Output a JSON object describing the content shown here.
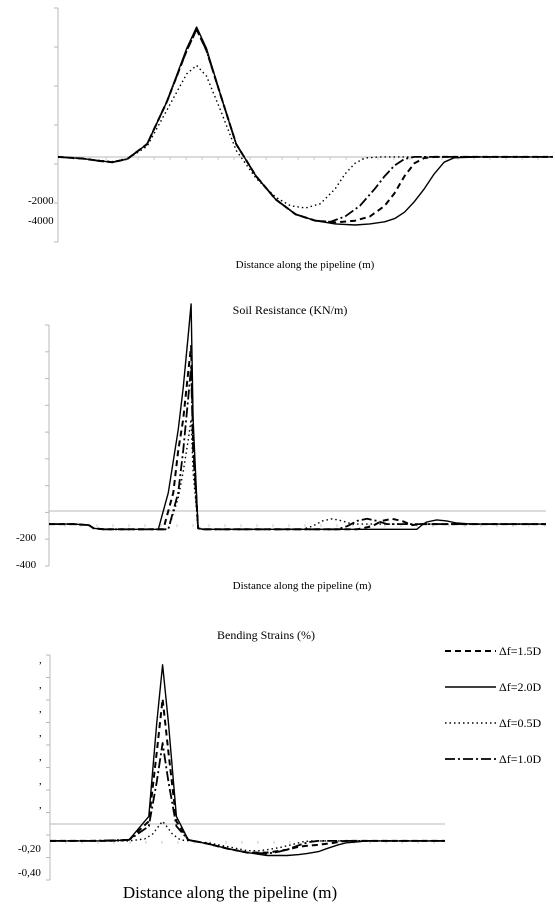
{
  "chart_data": [
    {
      "type": "line",
      "title": "",
      "xlabel": "Distance along the pipeline (m)",
      "ylabel": "",
      "y_ticks": [
        "-2000",
        "-4000"
      ],
      "ylim": [
        -4000,
        7000
      ],
      "xlim": [
        0,
        100
      ],
      "grid": false,
      "series": [
        {
          "name": "Δf=1.5D",
          "dash": "6,4",
          "width": 2,
          "x": [
            0,
            5,
            8,
            11,
            14,
            18,
            22,
            26,
            28,
            30,
            33,
            36,
            40,
            44,
            48,
            52,
            56,
            60,
            63,
            66,
            68,
            70,
            72,
            74,
            76,
            78,
            80,
            85,
            90,
            100
          ],
          "y": [
            0,
            -80,
            -180,
            -250,
            -100,
            600,
            2600,
            5000,
            6000,
            5000,
            2800,
            600,
            -900,
            -2000,
            -2700,
            -3000,
            -3080,
            -3000,
            -2800,
            -2300,
            -1700,
            -900,
            -300,
            -50,
            0,
            0,
            0,
            0,
            0,
            0
          ]
        },
        {
          "name": "Δf=2.0D",
          "dash": "",
          "width": 1.4,
          "x": [
            0,
            5,
            8,
            11,
            14,
            18,
            22,
            26,
            28,
            30,
            33,
            36,
            40,
            44,
            48,
            52,
            56,
            60,
            63,
            66,
            68,
            70,
            72,
            74,
            76,
            78,
            80,
            85,
            90,
            100
          ],
          "y": [
            0,
            -80,
            -180,
            -250,
            -100,
            600,
            2600,
            5100,
            6100,
            5100,
            2800,
            600,
            -900,
            -2000,
            -2700,
            -3000,
            -3150,
            -3200,
            -3150,
            -3050,
            -2900,
            -2600,
            -2100,
            -1500,
            -800,
            -250,
            -40,
            0,
            0,
            0
          ]
        },
        {
          "name": "Δf=0.5D",
          "dash": "1.5,3",
          "width": 1.4,
          "x": [
            0,
            5,
            8,
            11,
            14,
            18,
            22,
            26,
            28,
            30,
            33,
            36,
            40,
            44,
            47,
            50,
            53,
            56,
            58,
            60,
            62,
            65,
            70,
            80,
            90,
            100
          ],
          "y": [
            0,
            -80,
            -160,
            -220,
            -100,
            500,
            2200,
            3900,
            4300,
            3800,
            2100,
            300,
            -1000,
            -1900,
            -2300,
            -2400,
            -2200,
            -1500,
            -800,
            -300,
            -50,
            0,
            0,
            0,
            0,
            0
          ]
        },
        {
          "name": "Δf=1.0D",
          "dash": "10,3,2,3",
          "width": 1.8,
          "x": [
            0,
            5,
            8,
            11,
            14,
            18,
            22,
            26,
            28,
            30,
            33,
            36,
            40,
            44,
            48,
            52,
            55,
            58,
            61,
            64,
            66,
            68,
            70,
            72,
            75,
            80,
            90,
            100
          ],
          "y": [
            0,
            -80,
            -180,
            -250,
            -100,
            600,
            2600,
            5000,
            6000,
            5000,
            2800,
            600,
            -900,
            -2000,
            -2700,
            -3000,
            -3050,
            -2800,
            -2300,
            -1500,
            -900,
            -400,
            -100,
            0,
            0,
            0,
            0,
            0
          ]
        }
      ]
    },
    {
      "type": "line",
      "title": "Soil Resistance (KN/m)",
      "xlabel": "Distance along the pipeline (m)",
      "ylabel": "",
      "y_ticks": [
        "-200",
        "-400"
      ],
      "ylim": [
        -400,
        1900
      ],
      "xlim": [
        0,
        100
      ],
      "grid": false,
      "series": [
        {
          "name": "Δf=1.5D",
          "dash": "6,4",
          "width": 2,
          "x": [
            0,
            5,
            8,
            9,
            11,
            20,
            23,
            25,
            26,
            27,
            28,
            28.6,
            29,
            30,
            31,
            50,
            62,
            65,
            67,
            69,
            71,
            73,
            75,
            80,
            100
          ],
          "y": [
            0,
            0,
            -10,
            -40,
            -50,
            -50,
            -50,
            300,
            700,
            1000,
            1450,
            1700,
            800,
            -40,
            -50,
            -50,
            -50,
            -20,
            30,
            50,
            30,
            -10,
            0,
            0,
            0
          ]
        },
        {
          "name": "Δf=2.0D",
          "dash": "",
          "width": 1.4,
          "x": [
            0,
            5,
            8,
            9,
            11,
            20,
            22,
            24,
            26,
            27,
            28,
            28.6,
            29,
            30,
            31,
            50,
            70,
            74,
            75,
            76,
            78,
            80,
            82,
            85,
            100
          ],
          "y": [
            0,
            0,
            -10,
            -40,
            -50,
            -50,
            -50,
            300,
            900,
            1300,
            1800,
            2100,
            1000,
            -40,
            -50,
            -50,
            -50,
            -50,
            -10,
            20,
            40,
            30,
            10,
            0,
            0
          ]
        },
        {
          "name": "Δf=0.5D",
          "dash": "1.5,3",
          "width": 1.4,
          "x": [
            0,
            5,
            8,
            9,
            11,
            20,
            24,
            26,
            27,
            28,
            28.6,
            29,
            30,
            31,
            45,
            51,
            53,
            55,
            57,
            59,
            61,
            65,
            100
          ],
          "y": [
            0,
            0,
            -10,
            -40,
            -50,
            -50,
            -50,
            250,
            500,
            800,
            1000,
            500,
            -40,
            -50,
            -50,
            -50,
            -20,
            30,
            50,
            30,
            0,
            0,
            0
          ]
        },
        {
          "name": "Δf=1.0D",
          "dash": "10,3,2,3",
          "width": 1.8,
          "x": [
            0,
            5,
            8,
            9,
            11,
            20,
            24,
            26,
            27,
            28,
            28.6,
            29,
            30,
            31,
            55,
            58,
            60,
            62,
            64,
            66,
            68,
            70,
            100
          ],
          "y": [
            0,
            0,
            -10,
            -40,
            -50,
            -50,
            -50,
            300,
            700,
            1200,
            1500,
            700,
            -40,
            -50,
            -50,
            -50,
            -20,
            30,
            50,
            30,
            0,
            0,
            0
          ]
        }
      ]
    },
    {
      "type": "line",
      "title": "Bending Strains (%)",
      "xlabel": "Distance along the pipeline (m)",
      "ylabel": "",
      "y_ticks": [
        ",",
        ",",
        ",",
        ",",
        ",",
        ",",
        ",",
        "-0,20",
        "-0,40"
      ],
      "ylim": [
        -0.4,
        1.9
      ],
      "xlim": [
        0,
        100
      ],
      "grid": false,
      "series": [
        {
          "name": "Δf=1.5D",
          "dash": "6,4",
          "width": 2,
          "x": [
            0,
            10,
            15,
            20,
            25,
            27,
            28.5,
            30,
            32,
            35,
            40,
            45,
            50,
            55,
            60,
            63,
            65,
            68,
            70,
            72,
            73,
            75,
            80,
            90,
            100
          ],
          "y": [
            0,
            0,
            0,
            0.01,
            0.2,
            0.9,
            1.45,
            0.9,
            0.2,
            0.01,
            -0.03,
            -0.08,
            -0.12,
            -0.12,
            -0.09,
            -0.06,
            -0.05,
            -0.04,
            -0.03,
            -0.02,
            -0.01,
            0,
            0,
            0,
            0
          ]
        },
        {
          "name": "Δf=2.0D",
          "dash": "",
          "width": 1.4,
          "x": [
            0,
            10,
            15,
            20,
            25,
            27,
            28.5,
            30,
            32,
            35,
            40,
            45,
            50,
            55,
            60,
            63,
            65,
            68,
            70,
            73,
            75,
            78,
            80,
            90,
            100
          ],
          "y": [
            0,
            0,
            0,
            0.01,
            0.25,
            1.2,
            1.8,
            1.2,
            0.25,
            0.01,
            -0.03,
            -0.08,
            -0.12,
            -0.15,
            -0.15,
            -0.14,
            -0.13,
            -0.11,
            -0.08,
            -0.04,
            -0.02,
            -0.01,
            0,
            0,
            0
          ]
        },
        {
          "name": "Δf=0.5D",
          "dash": "1.5,3",
          "width": 1.4,
          "x": [
            0,
            10,
            20,
            24,
            26,
            27.5,
            28.5,
            29.5,
            31,
            33,
            40,
            45,
            50,
            53,
            55,
            58,
            60,
            62,
            64,
            66,
            70,
            80,
            90,
            100
          ],
          "y": [
            0,
            0,
            0,
            0.02,
            0.07,
            0.15,
            0.2,
            0.15,
            0.07,
            0.01,
            -0.02,
            -0.06,
            -0.1,
            -0.1,
            -0.09,
            -0.07,
            -0.05,
            -0.03,
            -0.01,
            0,
            0,
            0,
            0,
            0
          ]
        },
        {
          "name": "Δf=1.0D",
          "dash": "10,3,2,3",
          "width": 1.8,
          "x": [
            0,
            10,
            20,
            25,
            27,
            28.5,
            30,
            32,
            35,
            40,
            45,
            50,
            55,
            58,
            60,
            62,
            64,
            66,
            68,
            70,
            80,
            90,
            100
          ],
          "y": [
            0,
            0,
            0.01,
            0.15,
            0.6,
            1.0,
            0.6,
            0.15,
            0.01,
            -0.03,
            -0.08,
            -0.12,
            -0.13,
            -0.11,
            -0.09,
            -0.06,
            -0.03,
            -0.01,
            0,
            0,
            0,
            0,
            0
          ]
        }
      ]
    }
  ],
  "legend": [
    {
      "label": "Δf=1.5D",
      "dash": "6,4",
      "width": 2
    },
    {
      "label": "Δf=2.0D",
      "dash": "",
      "width": 1.4
    },
    {
      "label": "Δf=0.5D",
      "dash": "1.5,3",
      "width": 1.4
    },
    {
      "label": "Δf=1.0D",
      "dash": "10,3,2,3",
      "width": 1.8
    }
  ],
  "legend_position": "right of bottom chart"
}
